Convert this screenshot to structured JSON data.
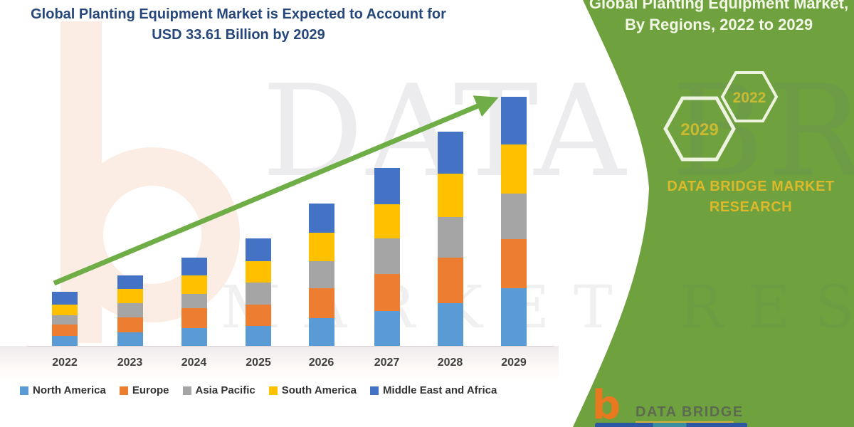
{
  "title": {
    "line1": "Global Planting Equipment Market is Expected to Account for",
    "line2": "USD 33.61 Billion by 2029"
  },
  "side_panel": {
    "bg_color": "#6fa23e",
    "heading_line1": "Global Planting Equipment Market,",
    "heading_line2": "By Regions, 2022 to 2029",
    "hexagons": [
      {
        "label": "2029"
      },
      {
        "label": "2022"
      }
    ],
    "brand_line1": "DATA BRIDGE MARKET",
    "brand_line2": "RESEARCH",
    "accent_text_color": "#dcb92b"
  },
  "watermark": {
    "big_text": "DATA BRIDGE",
    "small_text": "MARKET RESEAR",
    "letter_b_color": "#fbece4"
  },
  "footer_logo": {
    "letter": "b",
    "text": "DATA BRIDGE"
  },
  "chart_data": {
    "type": "bar",
    "stacked": true,
    "title": "Global Planting Equipment Market is Expected to Account for USD 33.61 Billion by 2029",
    "unit": "USD Billion",
    "categories": [
      "2022",
      "2023",
      "2024",
      "2025",
      "2026",
      "2027",
      "2028",
      "2029"
    ],
    "series": [
      {
        "name": "North America",
        "color": "#5b9bd5",
        "values": [
          1.37,
          1.85,
          2.43,
          2.66,
          3.77,
          4.68,
          5.76,
          7.75
        ]
      },
      {
        "name": "Europe",
        "color": "#ed7d31",
        "values": [
          1.51,
          1.99,
          2.63,
          2.88,
          4.0,
          5.02,
          6.14,
          6.6
        ]
      },
      {
        "name": "Asia Pacific",
        "color": "#a5a5a5",
        "values": [
          1.22,
          1.95,
          1.92,
          3.03,
          3.68,
          4.8,
          5.44,
          6.14
        ]
      },
      {
        "name": "South America",
        "color": "#ffc000",
        "values": [
          1.44,
          1.89,
          2.55,
          2.82,
          3.84,
          4.64,
          5.86,
          6.65
        ]
      },
      {
        "name": "Middle East and Africa",
        "color": "#4472c4",
        "values": [
          1.76,
          1.85,
          2.4,
          3.1,
          3.91,
          4.87,
          5.69,
          6.47
        ]
      }
    ],
    "totals": [
      7.3,
      9.53,
      11.93,
      14.49,
      19.2,
      24.01,
      28.89,
      33.61
    ],
    "highlight_value_2029": 33.61,
    "ylim": [
      0,
      34
    ],
    "grid": false,
    "legend_position": "bottom",
    "trend_arrow": "up"
  }
}
